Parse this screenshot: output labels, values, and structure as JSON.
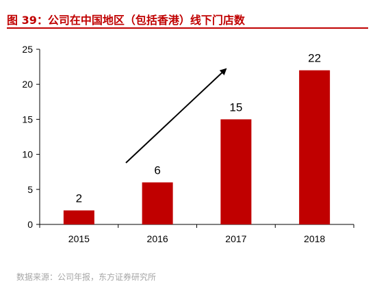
{
  "header": {
    "title": "图 39：公司在中国地区（包括香港）线下门店数"
  },
  "footer": {
    "source": "数据来源：公司年报，东方证券研究所"
  },
  "colors": {
    "title": "#c00000",
    "bar": "#c00000",
    "source_text": "#a6a6a6"
  },
  "chart_data": {
    "type": "bar",
    "categories": [
      "2015",
      "2016",
      "2017",
      "2018"
    ],
    "values": [
      2,
      6,
      15,
      22
    ],
    "title": "",
    "xlabel": "",
    "ylabel": "",
    "ylim": [
      0,
      25
    ],
    "yticks": [
      0,
      5,
      10,
      15,
      20,
      25
    ],
    "grid": false,
    "legend": "none",
    "data_labels": true,
    "annotation": "upward trend arrow"
  }
}
